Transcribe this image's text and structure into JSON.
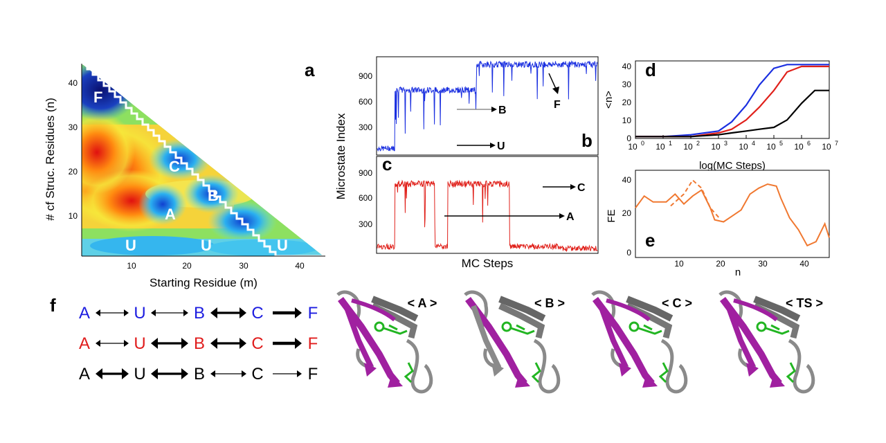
{
  "panel_a": {
    "letter": "a",
    "ylabel": "# cf Struc. Residues (n)",
    "xlabel": "Starting Residue (m)",
    "xticks": [
      "10",
      "20",
      "30",
      "40"
    ],
    "yticks": [
      "10",
      "20",
      "30",
      "40"
    ],
    "state_labels": [
      "F",
      "C",
      "B",
      "A",
      "U",
      "U",
      "U"
    ]
  },
  "panel_b": {
    "letter": "b",
    "yticks": [
      "300",
      "600",
      "900"
    ],
    "annotations": [
      "B",
      "U",
      "F"
    ]
  },
  "panel_c": {
    "letter": "c",
    "yticks": [
      "300",
      "600",
      "900"
    ],
    "annotations": [
      "C",
      "A"
    ]
  },
  "shared_bc": {
    "ylabel": "Microstate Index",
    "xlabel": "MC Steps"
  },
  "panel_d": {
    "letter": "d",
    "ylabel": "<n>",
    "xlabel": "log(MC Steps)",
    "yticks": [
      "0",
      "10",
      "20",
      "30",
      "40"
    ],
    "xticks": [
      "10",
      "10",
      "10",
      "10",
      "10",
      "10",
      "10",
      "10"
    ],
    "xtick_exponents": [
      "0",
      "1",
      "2",
      "3",
      "4",
      "5",
      "6",
      "7"
    ]
  },
  "panel_e": {
    "letter": "e",
    "ylabel": "FE",
    "xlabel": "n",
    "yticks": [
      "0",
      "20",
      "40"
    ],
    "xticks": [
      "10",
      "20",
      "30",
      "40"
    ]
  },
  "panel_f": {
    "letter": "f",
    "rows": [
      {
        "color": "#1c1ce0",
        "states": [
          "A",
          "U",
          "B",
          "C",
          "F"
        ],
        "arrow_weights": [
          "thin",
          "thin",
          "thick",
          "thicker"
        ]
      },
      {
        "color": "#e01c1c",
        "states": [
          "A",
          "U",
          "B",
          "C",
          "F"
        ],
        "arrow_weights": [
          "thin",
          "thick",
          "thick",
          "thicker"
        ]
      },
      {
        "color": "#000000",
        "states": [
          "A",
          "U",
          "B",
          "C",
          "F"
        ],
        "arrow_weights": [
          "thick",
          "thick",
          "thin",
          "thin-single"
        ]
      }
    ]
  },
  "structures": [
    {
      "title": "< A >"
    },
    {
      "title": "< B >"
    },
    {
      "title": "< C >"
    },
    {
      "title": "< TS >"
    }
  ],
  "colors": {
    "blue_trace": "#1a2fe0",
    "red_trace": "#e0201a",
    "black_trace": "#000000",
    "fe_curve": "#f07830",
    "helix_magenta": "#a020a0",
    "loop_gray": "#8a8a8a",
    "sidechain_green": "#22b522"
  },
  "chart_data": [
    {
      "type": "line",
      "panel": "d",
      "xlabel": "log(MC Steps)",
      "ylabel": "<n>",
      "xscale": "log",
      "xlim": [
        1,
        10000000
      ],
      "ylim": [
        0,
        42
      ],
      "x": [
        1,
        10,
        100,
        1000,
        3000,
        10000,
        30000,
        100000,
        300000,
        1000000,
        3000000,
        10000000
      ],
      "series": [
        {
          "color": "blue",
          "values": [
            1,
            1,
            2,
            4,
            9,
            18,
            29,
            38,
            40,
            40,
            40,
            40
          ]
        },
        {
          "color": "red",
          "values": [
            1,
            1,
            1,
            3,
            5,
            10,
            17,
            26,
            36,
            39,
            39,
            39
          ]
        },
        {
          "color": "black",
          "values": [
            1,
            1,
            1,
            2,
            3,
            4,
            5,
            6,
            10,
            19,
            26,
            26
          ]
        }
      ]
    },
    {
      "type": "line",
      "panel": "e",
      "xlabel": "n",
      "ylabel": "FE",
      "xlim": [
        1,
        45
      ],
      "ylim": [
        0,
        44
      ],
      "series": [
        {
          "style": "solid",
          "x": [
            1,
            3,
            5,
            8,
            10,
            12,
            14,
            16,
            18,
            19,
            21,
            23,
            25,
            27,
            29,
            31,
            33,
            34,
            36,
            38,
            40,
            42,
            44,
            45
          ],
          "values": [
            25,
            31,
            28,
            28,
            32,
            27,
            31,
            34,
            25,
            19,
            18,
            21,
            24,
            32,
            35,
            37,
            36,
            30,
            20,
            14,
            6,
            8,
            17,
            10
          ]
        },
        {
          "style": "dashed",
          "x": [
            9,
            10,
            12,
            14,
            16,
            18,
            20
          ],
          "values": [
            26,
            28,
            32,
            39,
            35,
            25,
            20
          ]
        }
      ]
    },
    {
      "type": "line",
      "panel": "b",
      "xlabel": "MC Steps",
      "ylabel": "Microstate Index",
      "ylim": [
        0,
        1080
      ],
      "series": [
        {
          "color": "blue",
          "note": "trajectory",
          "levels": [
            {
              "x0": 0.0,
              "x1": 0.08,
              "value": 60
            },
            {
              "x0": 0.08,
              "x1": 0.45,
              "value": 720
            },
            {
              "x0": 0.45,
              "x1": 1.0,
              "value": 1010
            }
          ]
        }
      ]
    },
    {
      "type": "line",
      "panel": "c",
      "xlabel": "MC Steps",
      "ylabel": "Microstate Index",
      "ylim": [
        0,
        1050
      ],
      "series": [
        {
          "color": "red",
          "note": "trajectory",
          "levels": [
            {
              "x0": 0.0,
              "x1": 0.08,
              "value": 60
            },
            {
              "x0": 0.08,
              "x1": 0.26,
              "value": 760
            },
            {
              "x0": 0.32,
              "x1": 0.6,
              "value": 760
            },
            {
              "x0": 0.6,
              "x1": 0.68,
              "value": 60
            },
            {
              "x0": 0.68,
              "x1": 0.82,
              "value": 60
            },
            {
              "x0": 0.82,
              "x1": 1.0,
              "value": 40
            }
          ]
        }
      ]
    }
  ]
}
